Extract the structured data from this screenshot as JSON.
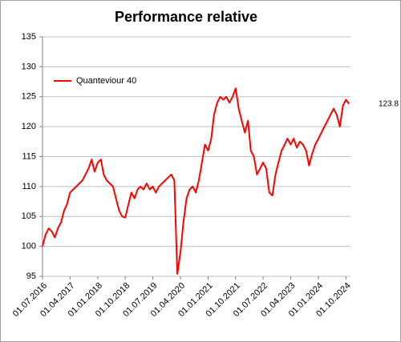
{
  "chart_data": {
    "type": "line",
    "title": "Performance relative",
    "x": [
      "2016-07-01",
      "2016-08-01",
      "2016-09-01",
      "2016-10-01",
      "2016-11-01",
      "2016-12-01",
      "2017-01-01",
      "2017-02-01",
      "2017-03-01",
      "2017-04-01",
      "2017-05-01",
      "2017-06-01",
      "2017-07-01",
      "2017-08-01",
      "2017-09-01",
      "2017-10-01",
      "2017-11-01",
      "2017-12-01",
      "2018-01-01",
      "2018-02-01",
      "2018-03-01",
      "2018-04-01",
      "2018-05-01",
      "2018-06-01",
      "2018-07-01",
      "2018-08-01",
      "2018-09-01",
      "2018-10-01",
      "2018-11-01",
      "2018-12-01",
      "2019-01-01",
      "2019-02-01",
      "2019-03-01",
      "2019-04-01",
      "2019-05-01",
      "2019-06-01",
      "2019-07-01",
      "2019-08-01",
      "2019-09-01",
      "2019-10-01",
      "2019-11-01",
      "2019-12-01",
      "2020-01-01",
      "2020-02-01",
      "2020-03-01",
      "2020-04-01",
      "2020-05-01",
      "2020-06-01",
      "2020-07-01",
      "2020-08-01",
      "2020-09-01",
      "2020-10-01",
      "2020-11-01",
      "2020-12-01",
      "2021-01-01",
      "2021-02-01",
      "2021-03-01",
      "2021-04-01",
      "2021-05-01",
      "2021-06-01",
      "2021-07-01",
      "2021-08-01",
      "2021-09-01",
      "2021-10-01",
      "2021-11-01",
      "2021-12-01",
      "2022-01-01",
      "2022-02-01",
      "2022-03-01",
      "2022-04-01",
      "2022-05-01",
      "2022-06-01",
      "2022-07-01",
      "2022-08-01",
      "2022-09-01",
      "2022-10-01",
      "2022-11-01",
      "2022-12-01",
      "2023-01-01",
      "2023-02-01",
      "2023-03-01",
      "2023-04-01",
      "2023-05-01",
      "2023-06-01",
      "2023-07-01",
      "2023-08-01",
      "2023-09-01",
      "2023-10-01",
      "2023-11-01",
      "2023-12-01",
      "2024-01-01",
      "2024-02-01",
      "2024-03-01",
      "2024-04-01",
      "2024-05-01",
      "2024-06-01",
      "2024-07-01",
      "2024-08-01",
      "2024-09-01",
      "2024-10-01",
      "2024-11-01"
    ],
    "series": [
      {
        "name": "Quanteviour  40",
        "color": "#ff0000",
        "values": [
          100,
          102,
          103,
          102.5,
          101.5,
          103,
          104,
          106,
          107,
          109,
          109.5,
          110,
          110.5,
          111,
          112,
          113,
          114.5,
          112.5,
          114,
          114.5,
          112,
          111,
          110.5,
          110,
          108,
          106,
          105,
          104.8,
          107,
          109,
          108,
          109.5,
          110,
          109.5,
          110.5,
          109.5,
          110,
          109,
          110,
          110.5,
          111,
          111.5,
          112,
          111,
          95.4,
          99,
          104,
          108,
          109.5,
          110,
          109,
          111,
          114,
          117,
          116,
          118,
          122,
          124,
          125,
          124.5,
          125,
          124,
          125,
          126.4,
          123,
          121,
          119,
          121,
          116,
          115,
          112,
          113,
          114,
          113,
          109,
          108.5,
          112,
          114,
          116,
          117,
          118,
          117,
          118,
          116.5,
          117.5,
          117,
          116,
          113.5,
          115.5,
          117,
          118,
          119,
          120,
          121,
          122,
          123,
          122,
          120,
          123.5,
          124.5,
          123.8
        ]
      }
    ],
    "xlim": [
      "2016-07-01",
      "2024-11-15"
    ],
    "xticks": [
      {
        "value": "2016-07-01",
        "label": "01.07.2016"
      },
      {
        "value": "2017-04-01",
        "label": "01.04.2017"
      },
      {
        "value": "2018-01-01",
        "label": "01.01.2018"
      },
      {
        "value": "2018-10-01",
        "label": "01.10.2018"
      },
      {
        "value": "2019-07-01",
        "label": "01.07.2019"
      },
      {
        "value": "2020-04-01",
        "label": "01.04.2020"
      },
      {
        "value": "2021-01-01",
        "label": "01.01.2021"
      },
      {
        "value": "2021-10-01",
        "label": "01.10.2021"
      },
      {
        "value": "2022-07-01",
        "label": "01.07.2022"
      },
      {
        "value": "2023-04-01",
        "label": "01.04.2023"
      },
      {
        "value": "2024-01-01",
        "label": "01.01.2024"
      },
      {
        "value": "2024-10-01",
        "label": "01.10.2024"
      }
    ],
    "ylim": [
      95,
      135
    ],
    "yticks": [
      95,
      100,
      105,
      110,
      115,
      120,
      125,
      130,
      135
    ],
    "grid": true,
    "legend": "upper left",
    "annotations": [
      {
        "text": "123.8",
        "y": 123.8,
        "color": "#ff0000"
      }
    ]
  }
}
